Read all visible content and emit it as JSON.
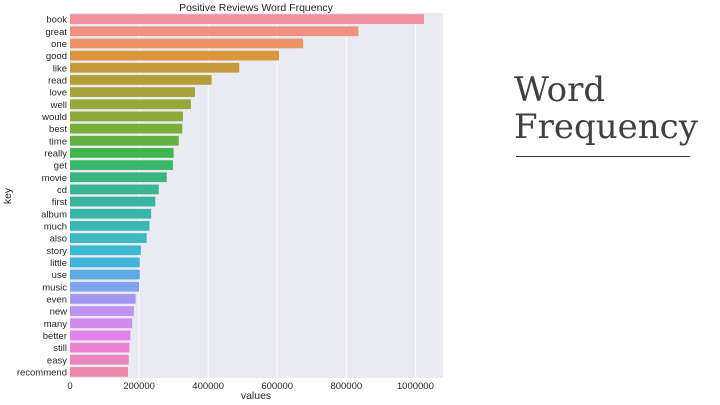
{
  "slide": {
    "title_line1": "Word",
    "title_line2": "Frequency"
  },
  "chart_data": {
    "type": "bar",
    "orientation": "horizontal",
    "title": "Positive Reviews Word Frquency",
    "xlabel": "values",
    "ylabel": "key",
    "xlim": [
      0,
      1080000
    ],
    "xticks": [
      0,
      200000,
      400000,
      600000,
      800000,
      1000000
    ],
    "xtick_labels": [
      "0",
      "200000",
      "400000",
      "600000",
      "800000",
      "1000000"
    ],
    "grid": true,
    "categories": [
      "book",
      "great",
      "one",
      "good",
      "like",
      "read",
      "love",
      "well",
      "would",
      "best",
      "time",
      "really",
      "get",
      "movie",
      "cd",
      "first",
      "album",
      "much",
      "also",
      "story",
      "little",
      "use",
      "music",
      "even",
      "new",
      "many",
      "better",
      "still",
      "easy",
      "recommend"
    ],
    "values": [
      1025000,
      835000,
      675000,
      605000,
      490000,
      410000,
      362000,
      350000,
      327000,
      325000,
      315000,
      300000,
      298000,
      280000,
      257000,
      247000,
      235000,
      230000,
      222000,
      205000,
      202000,
      202000,
      200000,
      190000,
      185000,
      180000,
      175000,
      172000,
      170000,
      168000
    ],
    "colors": [
      "#f0909d",
      "#ef9180",
      "#eb9468",
      "#db953f",
      "#c59a3b",
      "#b39e3a",
      "#a5a23a",
      "#98a53a",
      "#8aa93a",
      "#7bad3c",
      "#63b240",
      "#3fb64d",
      "#38b76b",
      "#3ab47e",
      "#39b58f",
      "#38b59c",
      "#39b6a8",
      "#3bb7b3",
      "#3bb8c0",
      "#3db9cf",
      "#42b4d8",
      "#5aace2",
      "#7fa4eb",
      "#a398ee",
      "#be93ef",
      "#d28aed",
      "#e382ea",
      "#ea83d3",
      "#ec86be",
      "#ed89ac"
    ]
  }
}
